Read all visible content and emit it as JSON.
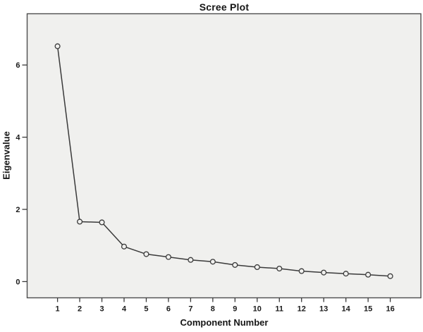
{
  "chart_data": {
    "type": "line",
    "title": "Scree Plot",
    "xlabel": "Component Number",
    "ylabel": "Eigenvalue",
    "x": [
      1,
      2,
      3,
      4,
      5,
      6,
      7,
      8,
      9,
      10,
      11,
      12,
      13,
      14,
      15,
      16
    ],
    "values": [
      6.52,
      1.66,
      1.64,
      0.97,
      0.76,
      0.68,
      0.6,
      0.55,
      0.46,
      0.4,
      0.36,
      0.29,
      0.25,
      0.22,
      0.19,
      0.15
    ],
    "yticks": [
      0,
      2,
      4,
      6
    ],
    "xticks": [
      1,
      2,
      3,
      4,
      5,
      6,
      7,
      8,
      9,
      10,
      11,
      12,
      13,
      14,
      15,
      16
    ],
    "ylim": [
      -0.45,
      7.42
    ],
    "xlim": [
      -0.37,
      17.38
    ],
    "grid": false,
    "legend": null,
    "marker": "open-circle",
    "colors": {
      "plot_background": "#f0f0ee",
      "frame": "#4d4d4d",
      "line": "#3a3a3a",
      "marker_stroke": "#3a3a3a",
      "marker_fill": "#f0f0ee",
      "tick": "#3a3a3a",
      "text": "#1a1a1a",
      "page_background": "#ffffff"
    }
  }
}
